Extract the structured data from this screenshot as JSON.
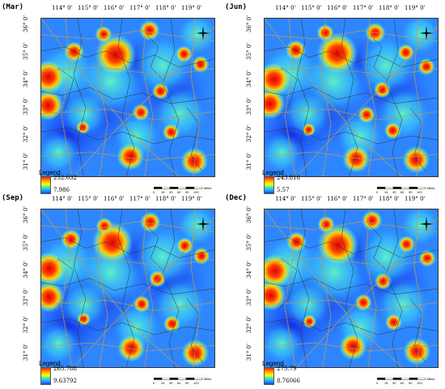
{
  "panels": [
    {
      "id": "mar",
      "label": "(Mar)",
      "legend_title": "Legend",
      "legend_max": "252.032",
      "legend_min": "7.986"
    },
    {
      "id": "jun",
      "label": "(Jun)",
      "legend_title": "Legend",
      "legend_max": "243.818",
      "legend_min": "5.57"
    },
    {
      "id": "sep",
      "label": "(Sep)",
      "legend_title": "Legend",
      "legend_max": "265.788",
      "legend_min": "9.63792"
    },
    {
      "id": "dec",
      "label": "(Dec)",
      "legend_title": "Legend",
      "legend_max": "275.79",
      "legend_min": "8.76066"
    }
  ],
  "lon_labels": [
    "114° 0'",
    "115° 0'",
    "116° 0'",
    "117° 0'",
    "118° 0'",
    "119° 0'"
  ],
  "lat_labels": [
    "36° 0'",
    "35° 0'",
    "34° 0'",
    "33° 0'",
    "32° 0'",
    "31° 0'"
  ],
  "scale": {
    "ticks": [
      "0",
      "15",
      "30",
      "60",
      "90",
      "120"
    ],
    "units": "Miles"
  },
  "colors": {
    "low": "#1a3cff",
    "mid": "#30e6c8",
    "high": "#ff1e00",
    "roads": "#b89a5a",
    "boundaries": "#333333"
  },
  "icons": {
    "north": "north-arrow-icon"
  }
}
